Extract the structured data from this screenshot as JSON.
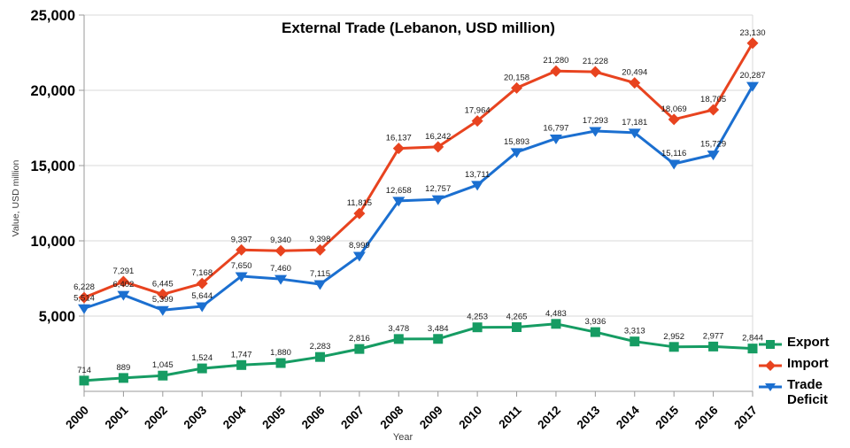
{
  "chart_data": {
    "type": "line",
    "title": "External Trade (Lebanon, USD million)",
    "xlabel": "Year",
    "ylabel": "Value, USD million",
    "categories": [
      "2000",
      "2001",
      "2002",
      "2003",
      "2004",
      "2005",
      "2006",
      "2007",
      "2008",
      "2009",
      "2010",
      "2011",
      "2012",
      "2013",
      "2014",
      "2015",
      "2016",
      "2017"
    ],
    "series": [
      {
        "name": "Export",
        "marker": "square",
        "color": "#169c63",
        "values": [
          714,
          889,
          1045,
          1524,
          1747,
          1880,
          2283,
          2816,
          3478,
          3484,
          4253,
          4265,
          4483,
          3936,
          3313,
          2952,
          2977,
          2844
        ],
        "value_labels": [
          "714",
          "889",
          "1,045",
          "1,524",
          "1,747",
          "1,880",
          "2,283",
          "2,816",
          "3,478",
          "3,484",
          "4,253",
          "4,265",
          "4,483",
          "3,936",
          "3,313",
          "2,952",
          "2,977",
          "2,844"
        ]
      },
      {
        "name": "Import",
        "marker": "diamond",
        "color": "#e8431f",
        "values": [
          6228,
          7291,
          6445,
          7168,
          9397,
          9340,
          9398,
          11815,
          16137,
          16242,
          17964,
          20158,
          21280,
          21228,
          20494,
          18069,
          18705,
          23130
        ],
        "value_labels": [
          "6,228",
          "7,291",
          "6,445",
          "7,168",
          "9,397",
          "9,340",
          "9,398",
          "11,815",
          "16,137",
          "16,242",
          "17,964",
          "20,158",
          "21,280",
          "21,228",
          "20,494",
          "18,069",
          "18,705",
          "23,130"
        ]
      },
      {
        "name": "Trade Deficit",
        "marker": "triangle-down",
        "color": "#1b6fd0",
        "values": [
          5514,
          6402,
          5399,
          5644,
          7650,
          7460,
          7115,
          8999,
          12658,
          12757,
          13711,
          15893,
          16797,
          17293,
          17181,
          15116,
          15729,
          20287
        ],
        "value_labels": [
          "5,514",
          "6,402",
          "5,399",
          "5,644",
          "7,650",
          "7,460",
          "7,115",
          "8,999",
          "12,658",
          "12,757",
          "13,711",
          "15,893",
          "16,797",
          "17,293",
          "17,181",
          "15,116",
          "15,729",
          "20,287"
        ]
      }
    ],
    "ylim": [
      0,
      25000
    ],
    "yticks": [
      5000,
      10000,
      15000,
      20000,
      25000
    ],
    "ytick_labels": [
      "5,000",
      "10,000",
      "15,000",
      "20,000",
      "25,000"
    ],
    "grid": true,
    "legend_position": "bottom-right",
    "data_labels": true
  }
}
